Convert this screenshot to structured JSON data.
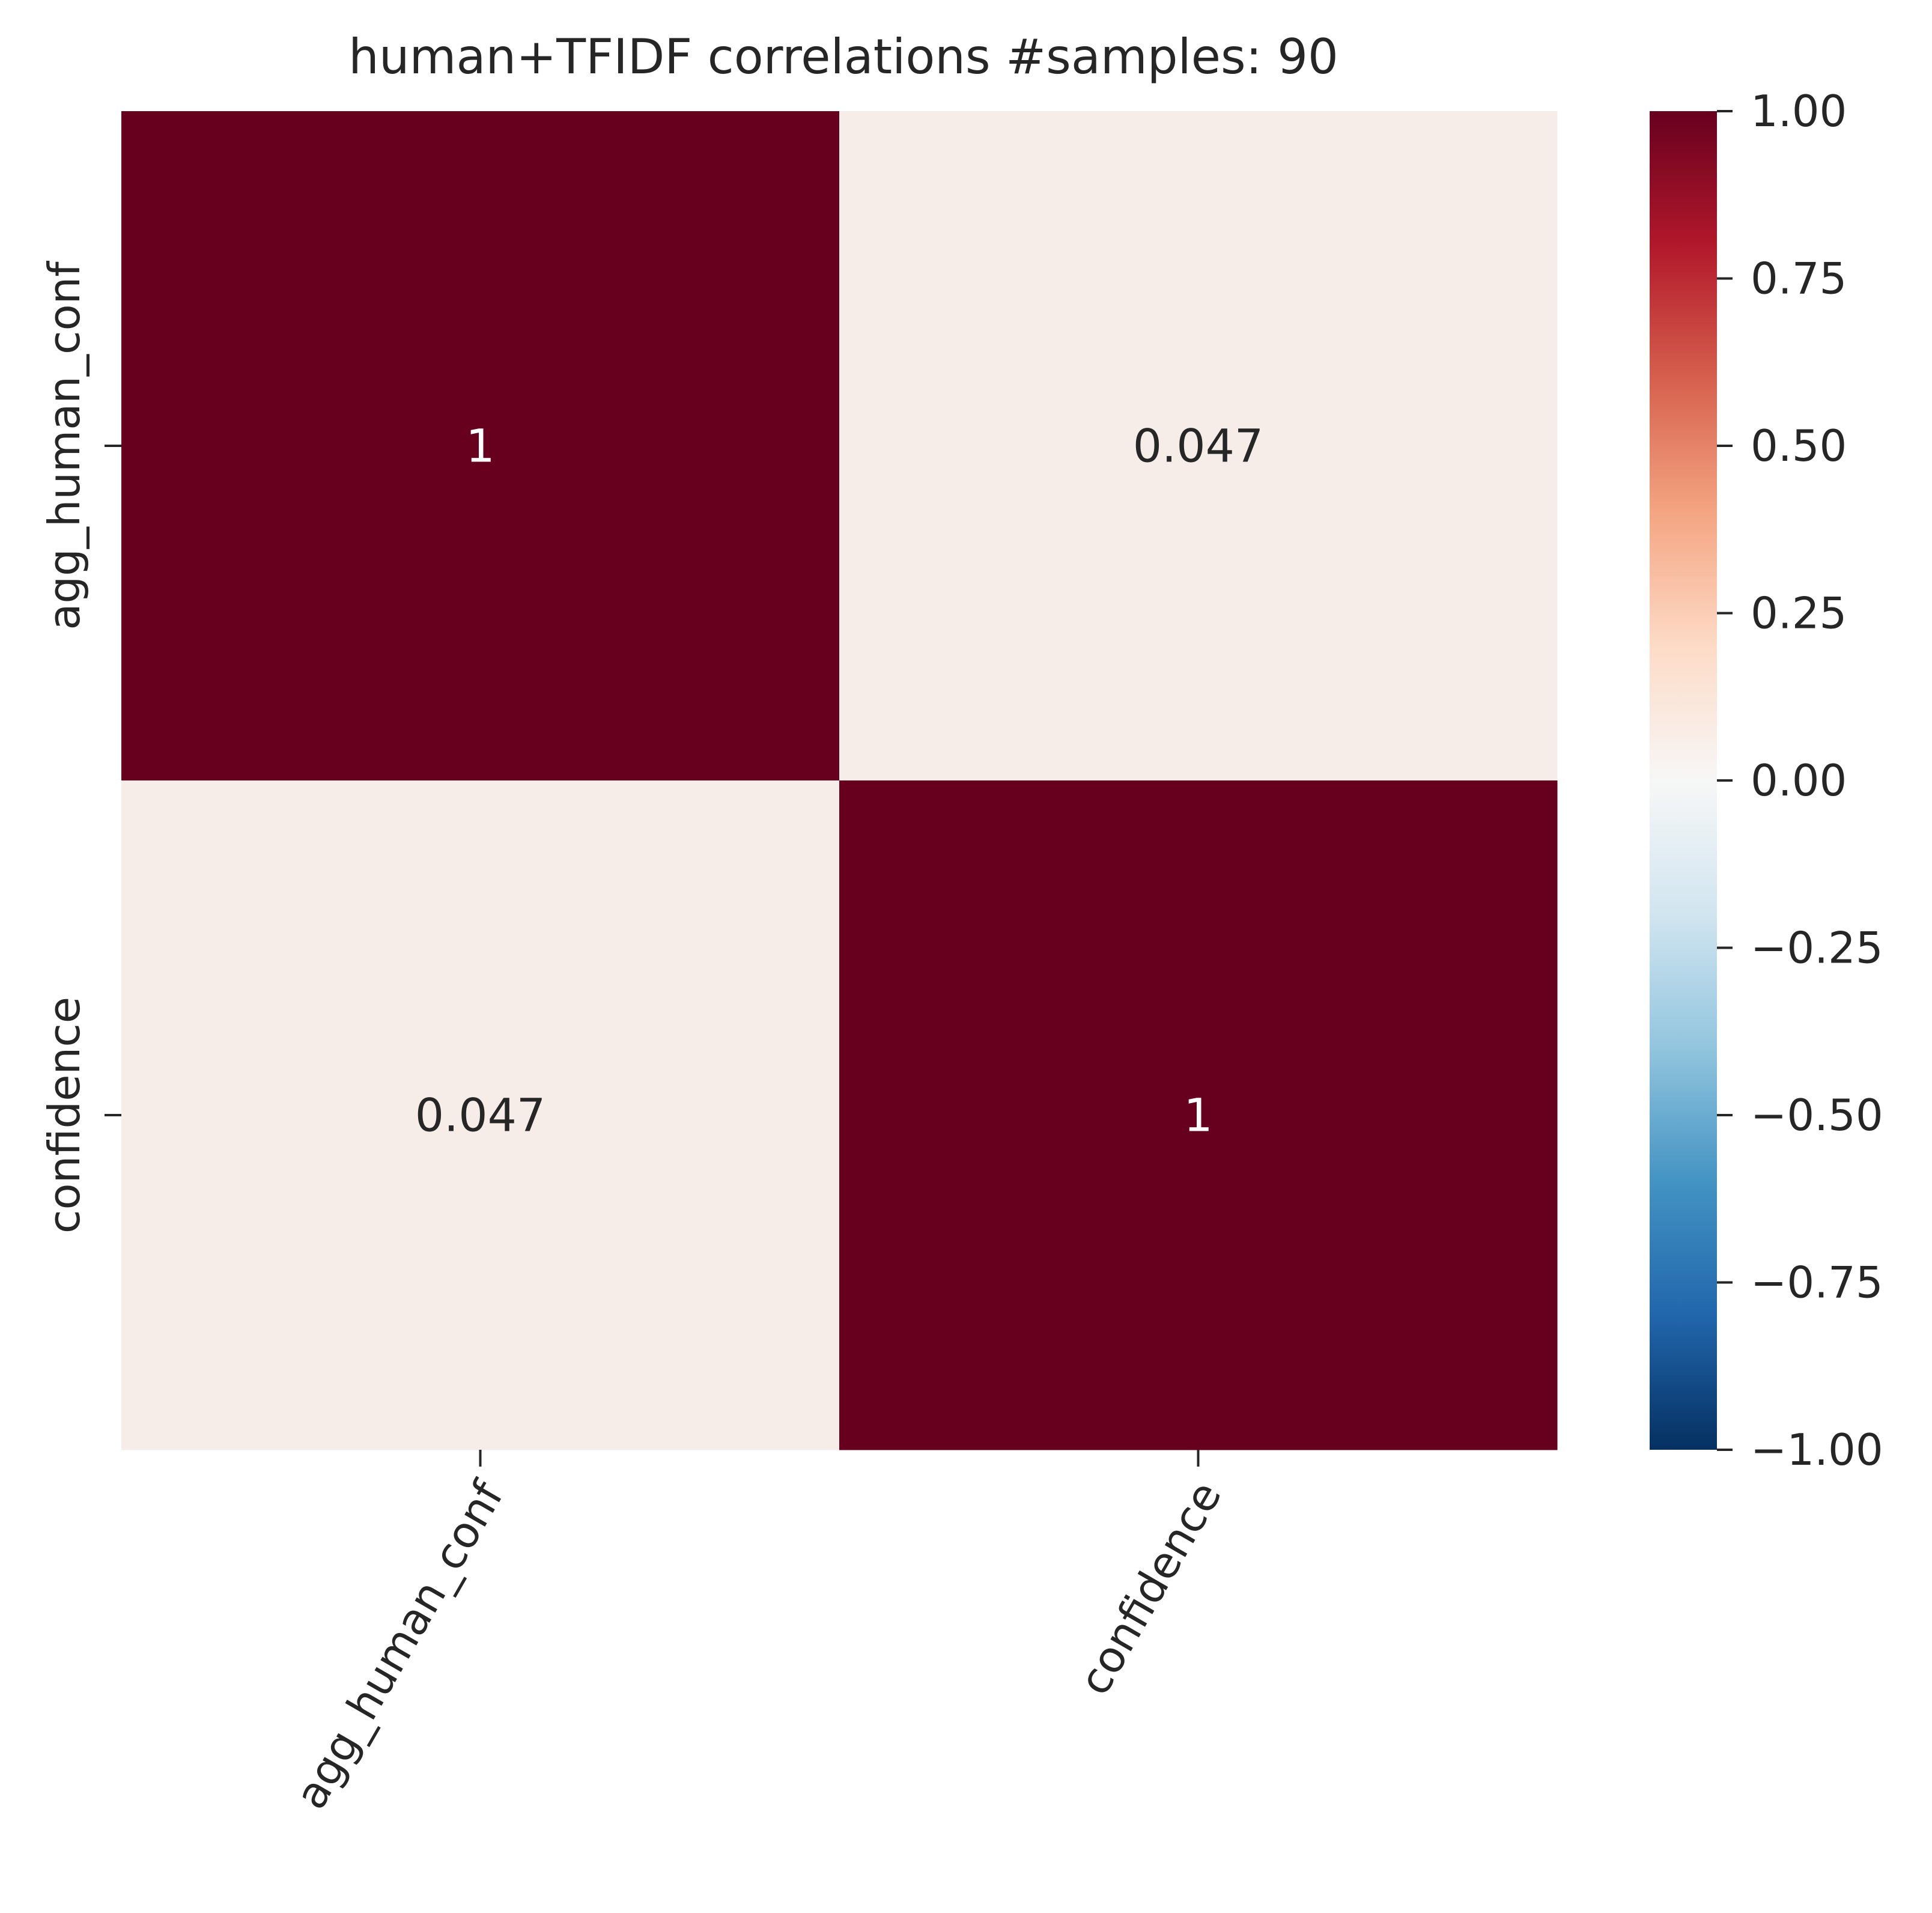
{
  "chart_data": {
    "type": "heatmap",
    "title": "human+TFIDF correlations #samples: 90",
    "rows": [
      "agg_human_conf",
      "confidence"
    ],
    "columns": [
      "agg_human_conf",
      "confidence"
    ],
    "values": [
      [
        1,
        0.047
      ],
      [
        0.047,
        1
      ]
    ],
    "cell_labels": [
      [
        "1",
        "0.047"
      ],
      [
        "0.047",
        "1"
      ]
    ],
    "colormap": "RdBu_r",
    "vmin": -1,
    "vmax": 1,
    "colorbar_ticks": [
      1.0,
      0.75,
      0.5,
      0.25,
      0.0,
      -0.25,
      -0.5,
      -0.75,
      -1.0
    ],
    "colorbar_tick_labels": [
      "1.00",
      "0.75",
      "0.50",
      "0.25",
      "0.00",
      "−0.25",
      "−0.50",
      "−0.75",
      "−1.00"
    ],
    "colorbar_stops": [
      "#053061",
      "#2166ac",
      "#4393c3",
      "#92c5de",
      "#d1e5f0",
      "#f7f7f7",
      "#fddbc7",
      "#f4a582",
      "#d6604d",
      "#b2182b",
      "#67001f"
    ],
    "colors": {
      "high": "#67001f",
      "low_positive": "#f7ede8",
      "text_dark": "#262626",
      "text_light": "#ffffff",
      "axis": "#262626"
    },
    "legend": "colorbar-right",
    "grid": false
  }
}
